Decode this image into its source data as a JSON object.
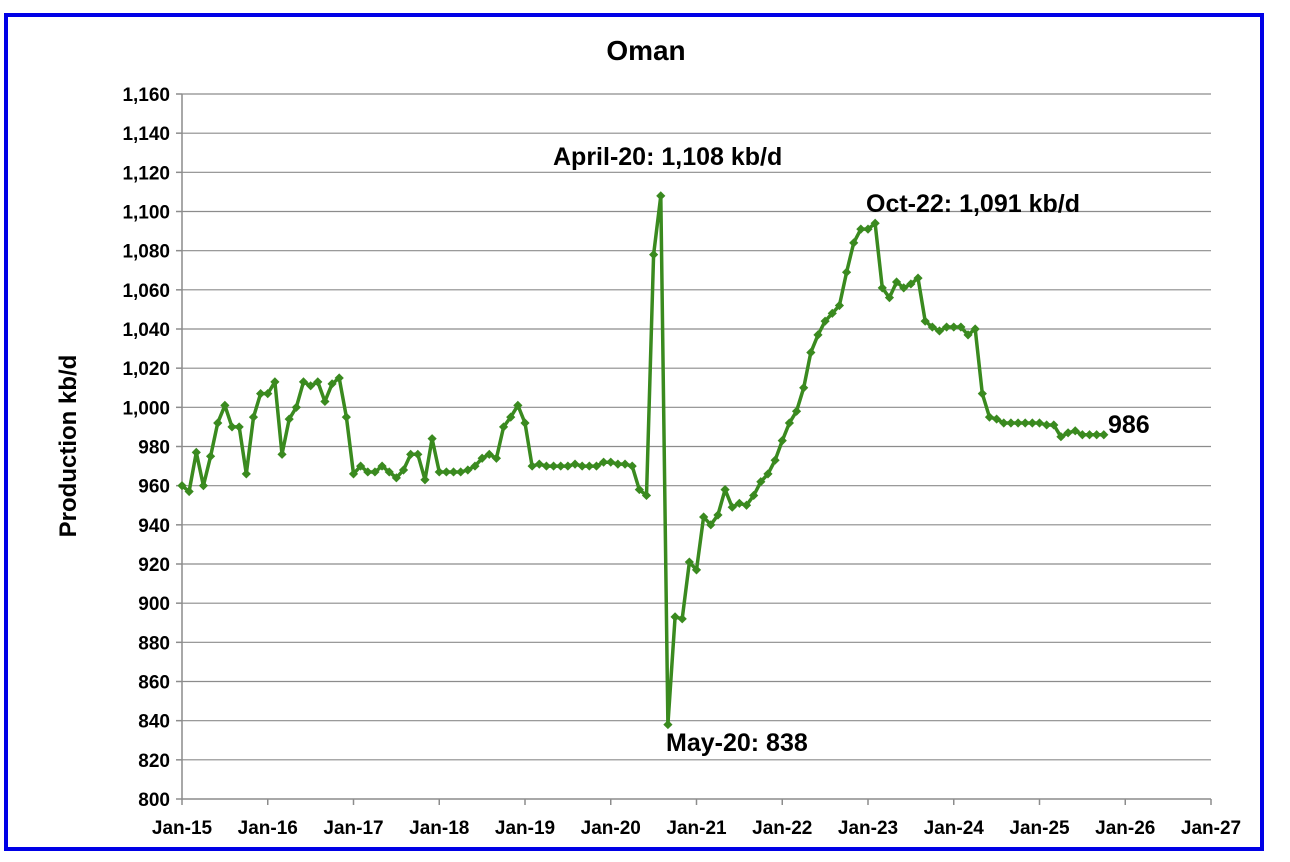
{
  "chart_data": {
    "type": "line",
    "title": "Oman",
    "ylabel": "Production kb/d",
    "xlabel": "",
    "ylim": [
      800,
      1160
    ],
    "y_tick_step": 20,
    "y_ticks": [
      "800",
      "820",
      "840",
      "860",
      "880",
      "900",
      "920",
      "940",
      "960",
      "980",
      "1,000",
      "1,020",
      "1,040",
      "1,060",
      "1,080",
      "1,100",
      "1,120",
      "1,140",
      "1,160"
    ],
    "x_ticks": [
      "Jan-15",
      "Jan-16",
      "Jan-17",
      "Jan-18",
      "Jan-19",
      "Jan-20",
      "Jan-21",
      "Jan-22",
      "Jan-23",
      "Jan-24",
      "Jan-25",
      "Jan-26",
      "Jan-27"
    ],
    "x_start": "Jan-15",
    "x_end": "Jan-27",
    "grid": true,
    "legend": "none",
    "series_color": "#3a8a1f",
    "series": [
      {
        "values": [
          960,
          957,
          977,
          960,
          975,
          992,
          1001,
          990,
          990,
          966,
          995,
          1007,
          1007,
          1013,
          976,
          994,
          1000,
          1013,
          1011,
          1013,
          1003,
          1012,
          1015,
          995,
          966,
          970,
          967,
          967,
          970,
          967,
          964,
          968,
          976,
          976,
          963,
          984,
          967,
          967,
          967,
          967,
          968,
          970,
          974,
          976,
          974,
          990,
          995,
          1001,
          992,
          970,
          971,
          970,
          970,
          970,
          970,
          971,
          970,
          970,
          970,
          972,
          972,
          971,
          971,
          970,
          958,
          955,
          1078,
          1108,
          838,
          893,
          892,
          921,
          917,
          944,
          940,
          945,
          958,
          949,
          951,
          950,
          955,
          962,
          966,
          973,
          983,
          992,
          998,
          1010,
          1028,
          1037,
          1044,
          1048,
          1052,
          1069,
          1084,
          1091,
          1091,
          1094,
          1061,
          1056,
          1064,
          1061,
          1063,
          1066,
          1044,
          1041,
          1039,
          1041,
          1041,
          1041,
          1037,
          1040,
          1007,
          995,
          994,
          992,
          992,
          992,
          992,
          992,
          992,
          991,
          991,
          985,
          987,
          988,
          986,
          986,
          986,
          986
        ]
      }
    ],
    "annotations": [
      {
        "text": "April-20: 1,108 kb/d"
      },
      {
        "text": "Oct-22: 1,091 kb/d"
      },
      {
        "text": "May-20: 838"
      },
      {
        "text": "986"
      }
    ]
  }
}
